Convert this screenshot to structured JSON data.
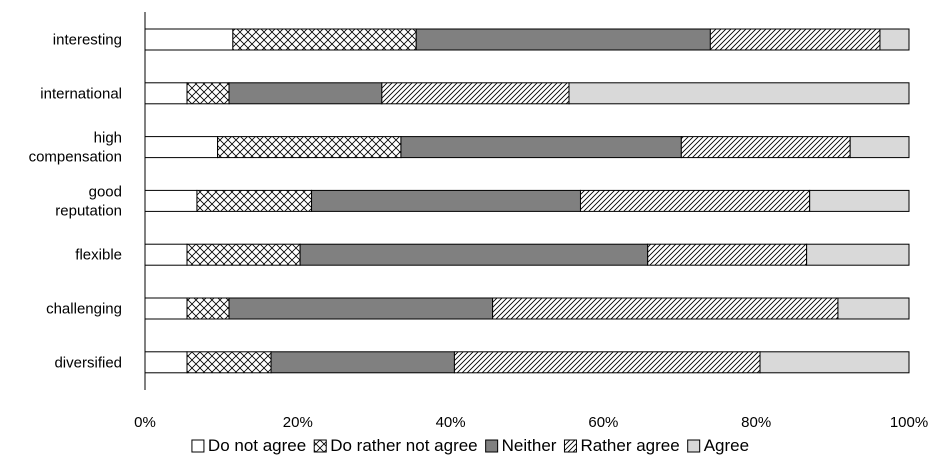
{
  "chart_data": {
    "type": "bar",
    "orientation": "horizontal",
    "stacked": true,
    "normalized_percent": true,
    "categories": [
      [
        "interesting"
      ],
      [
        "international"
      ],
      [
        "high",
        "compensation"
      ],
      [
        "good",
        "reputation"
      ],
      [
        "flexible"
      ],
      [
        "challenging"
      ],
      [
        "diversified"
      ]
    ],
    "series": [
      {
        "name": "Do not agree",
        "values": [
          11.5,
          5.5,
          9.5,
          6.8,
          5.5,
          5.5,
          5.5
        ],
        "fill": "#ffffff",
        "pattern": "none"
      },
      {
        "name": "Do rather not agree",
        "values": [
          24.0,
          5.5,
          24.0,
          15.0,
          14.8,
          5.5,
          11.0
        ],
        "fill": "#ffffff",
        "pattern": "crosshatch"
      },
      {
        "name": "Neither",
        "values": [
          38.5,
          20.0,
          36.7,
          35.2,
          45.5,
          34.5,
          24.0
        ],
        "fill": "#808080",
        "pattern": "none"
      },
      {
        "name": "Rather agree",
        "values": [
          22.2,
          24.5,
          22.1,
          30.0,
          20.8,
          45.2,
          40.0
        ],
        "fill": "#ffffff",
        "pattern": "diagonal"
      },
      {
        "name": "Agree",
        "values": [
          3.8,
          44.5,
          7.7,
          13.0,
          13.4,
          9.3,
          19.5
        ],
        "fill": "#d9d9d9",
        "pattern": "none"
      }
    ],
    "xlim": [
      0,
      100
    ],
    "xticks": [
      "0%",
      "20%",
      "40%",
      "60%",
      "80%",
      "100%"
    ],
    "title": "",
    "xlabel": "",
    "ylabel": "",
    "grid": false,
    "legend_position": "bottom"
  }
}
